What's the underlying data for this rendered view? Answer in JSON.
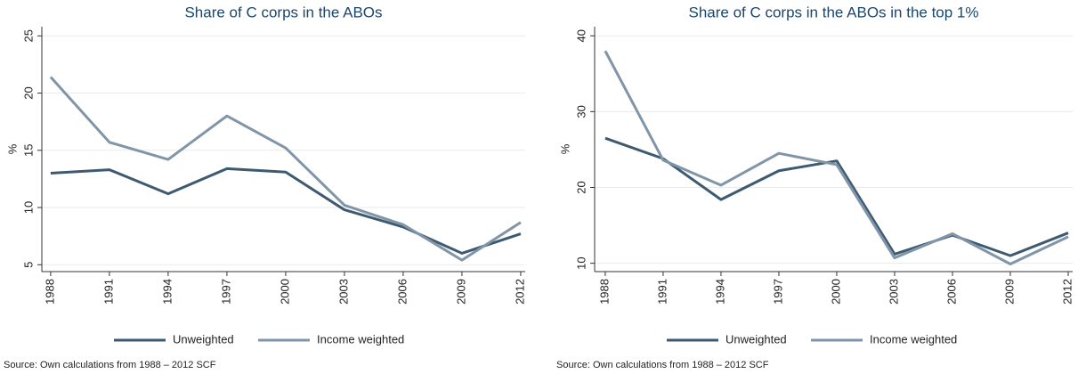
{
  "chart_data": [
    {
      "type": "line",
      "title": "Share of C corps in the ABOs",
      "y_label": "%",
      "x": [
        1988,
        1991,
        1994,
        1997,
        2000,
        2003,
        2006,
        2009,
        2012
      ],
      "xlim": [
        1987.55,
        2012.23
      ],
      "xticks": [
        1988,
        1991,
        1994,
        1997,
        2000,
        2003,
        2006,
        2009,
        2012
      ],
      "ylim": [
        4.4,
        25.8
      ],
      "yticks": [
        5,
        10,
        15,
        20,
        25
      ],
      "grid": true,
      "series": [
        {
          "name": "Unweighted",
          "color": "#3e5a70",
          "values": [
            13.0,
            13.3,
            11.2,
            13.4,
            13.1,
            9.8,
            8.3,
            6.0,
            7.7
          ]
        },
        {
          "name": "Income weighted",
          "color": "#8096a8",
          "values": [
            21.4,
            15.7,
            14.2,
            18.0,
            15.2,
            10.2,
            8.5,
            5.4,
            8.7
          ]
        }
      ],
      "note": "Source: Own calculations from 1988 – 2012 SCF"
    },
    {
      "type": "line",
      "title": "Share of C corps in the ABOs in the top 1%",
      "y_label": "%",
      "x": [
        1988,
        1991,
        1994,
        1997,
        2000,
        2003,
        2006,
        2009,
        2012
      ],
      "xlim": [
        1987.45,
        2012.23
      ],
      "xticks": [
        1988,
        1991,
        1994,
        1997,
        2000,
        2003,
        2006,
        2009,
        2012
      ],
      "ylim": [
        8.9,
        41.2
      ],
      "yticks": [
        10,
        20,
        30,
        40
      ],
      "grid": true,
      "series": [
        {
          "name": "Unweighted",
          "color": "#3e5a70",
          "values": [
            26.5,
            23.8,
            18.4,
            22.2,
            23.5,
            11.2,
            13.7,
            11.0,
            14.0
          ]
        },
        {
          "name": "Income weighted",
          "color": "#8096a8",
          "values": [
            38.0,
            23.6,
            20.3,
            24.5,
            23.0,
            10.7,
            13.9,
            9.9,
            13.5
          ]
        }
      ],
      "note": "Source: Own calculations from 1988 – 2012 SCF"
    }
  ]
}
